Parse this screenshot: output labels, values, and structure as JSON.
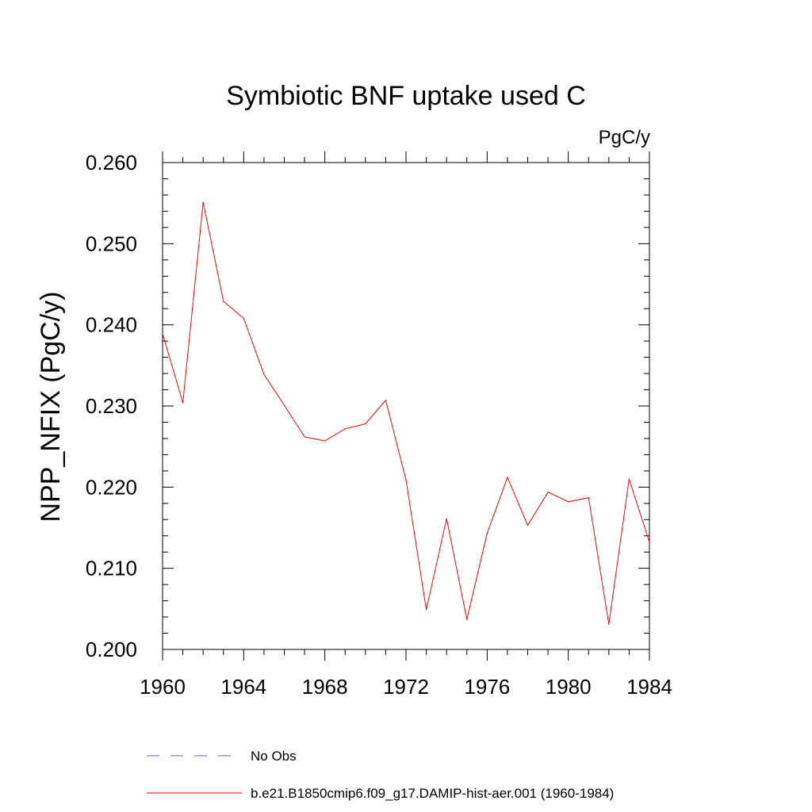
{
  "chart_data": {
    "type": "line",
    "title": "Symbiotic BNF uptake used C",
    "units_label": "PgC/y",
    "xlabel": "",
    "ylabel": "NPP_NFIX  (PgC/y)",
    "xlim": [
      1960,
      1984
    ],
    "ylim": [
      0.2,
      0.26
    ],
    "x_ticks": [
      1960,
      1964,
      1968,
      1972,
      1976,
      1980,
      1984
    ],
    "x_tick_labels": [
      "1960",
      "1964",
      "1968",
      "1972",
      "1976",
      "1980",
      "1984"
    ],
    "y_ticks": [
      0.2,
      0.21,
      0.22,
      0.23,
      0.24,
      0.25,
      0.26
    ],
    "y_tick_labels": [
      "0.200",
      "0.210",
      "0.220",
      "0.230",
      "0.240",
      "0.250",
      "0.260"
    ],
    "x_minor_step": 1,
    "y_minor_step": 0.002,
    "grid": false,
    "legend_position": "bottom",
    "series": [
      {
        "name": "b.e21.B1850cmip6.f09_g17.DAMIP-hist-aer.001 (1960-1984)",
        "color": "#ff0000",
        "style": "solid",
        "x": [
          1960,
          1961,
          1962,
          1963,
          1964,
          1965,
          1966,
          1967,
          1968,
          1969,
          1970,
          1971,
          1972,
          1973,
          1974,
          1975,
          1976,
          1977,
          1978,
          1979,
          1980,
          1981,
          1982,
          1983,
          1984
        ],
        "values": [
          0.2389,
          0.2304,
          0.2551,
          0.2429,
          0.2408,
          0.2339,
          0.2301,
          0.2262,
          0.2257,
          0.2272,
          0.2278,
          0.2307,
          0.2209,
          0.2049,
          0.2161,
          0.2037,
          0.2143,
          0.2212,
          0.2153,
          0.2194,
          0.2182,
          0.2187,
          0.2031,
          0.221,
          0.2132
        ]
      }
    ],
    "legend": [
      {
        "label": "No Obs",
        "color": "#6a5acd",
        "style": "dashed"
      },
      {
        "label": "b.e21.B1850cmip6.f09_g17.DAMIP-hist-aer.001 (1960-1984)",
        "color": "#ff0000",
        "style": "solid"
      }
    ]
  }
}
